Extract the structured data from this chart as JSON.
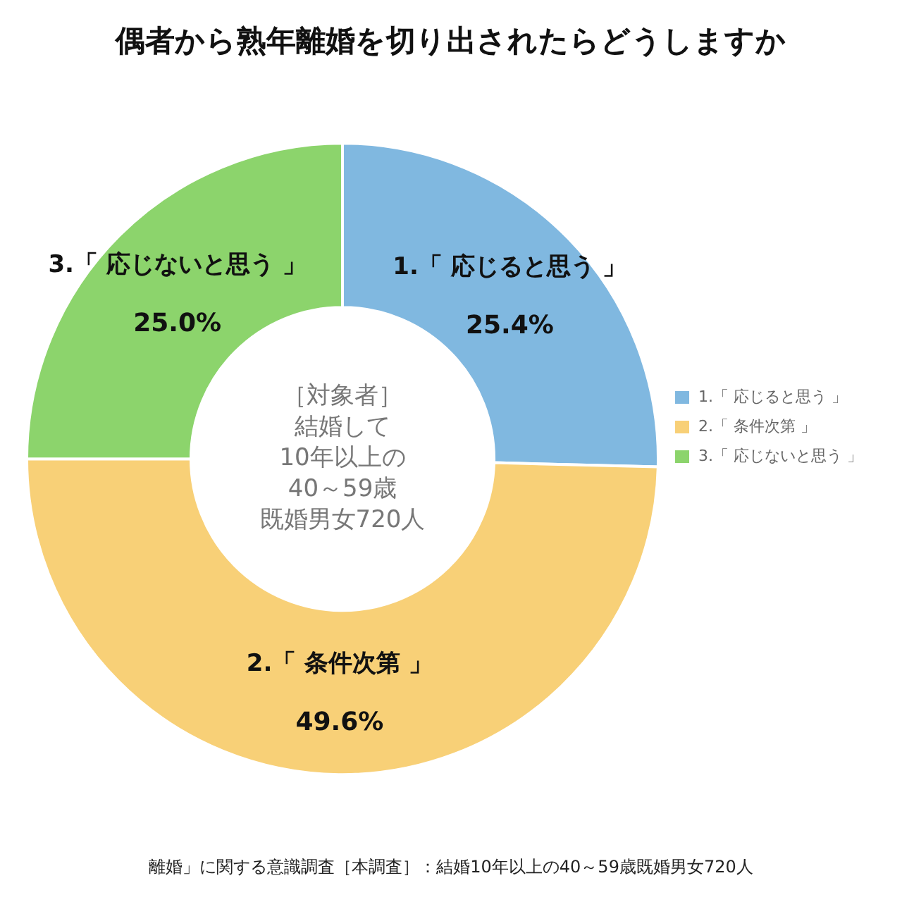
{
  "chart_data": {
    "type": "donut",
    "title": "偶者から熟年離婚を切り出されたらどうしますか",
    "categories": [
      "1.「 応じると思う 」",
      "2.「 条件次第 」",
      "3.「 応じないと思う 」"
    ],
    "values": [
      25.4,
      49.6,
      25.0
    ],
    "colors": [
      "#80b8e0",
      "#f8d077",
      "#8cd46c"
    ],
    "value_labels": [
      "25.4%",
      "49.6%",
      "25.0%"
    ],
    "legend": "right",
    "annotations": [
      "［対象者］",
      "結婚して",
      "10年以上の",
      "40～59歳",
      "既婚男女720人",
      "離婚」に関する意識調査［本調査］：結婚10年以上の40～59歳既婚男女720人"
    ]
  }
}
